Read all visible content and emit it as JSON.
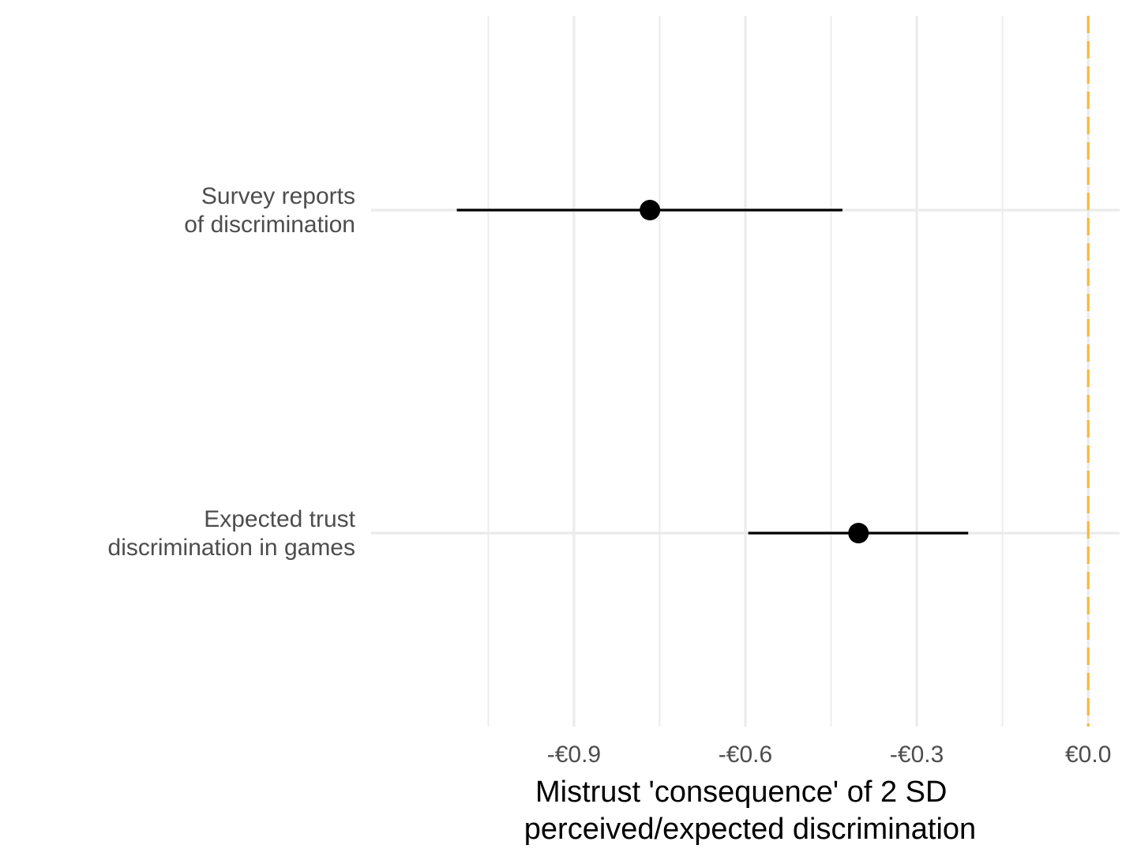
{
  "chart_data": {
    "type": "scatter",
    "subtype": "coefficient-plot-with-intervals",
    "x_axis": {
      "title_lines": [
        "Mistrust 'consequence' of 2 SD",
        "perceived/expected discrimination"
      ],
      "ticks": [
        -0.9,
        -0.6,
        -0.3,
        0.0
      ],
      "tick_labels": [
        "-€0.9",
        "-€0.6",
        "-€0.3",
        "€0.0"
      ],
      "minor_ticks": [
        -1.05,
        -0.75,
        -0.45,
        -0.15
      ],
      "range": [
        -1.255,
        0.055
      ]
    },
    "reference_line": {
      "x": 0.0,
      "style": "dashed",
      "color": "#f5b942"
    },
    "categories": [
      {
        "label_lines": [
          "Survey reports",
          "of discrimination"
        ],
        "estimate": -0.767,
        "ci_low": -1.105,
        "ci_high": -0.43
      },
      {
        "label_lines": [
          "Expected trust",
          "discrimination in games"
        ],
        "estimate": -0.402,
        "ci_low": -0.595,
        "ci_high": -0.21
      }
    ],
    "grid": true,
    "point_color": "#000000",
    "gridline_color": "#ebebeb",
    "legend": "none"
  }
}
